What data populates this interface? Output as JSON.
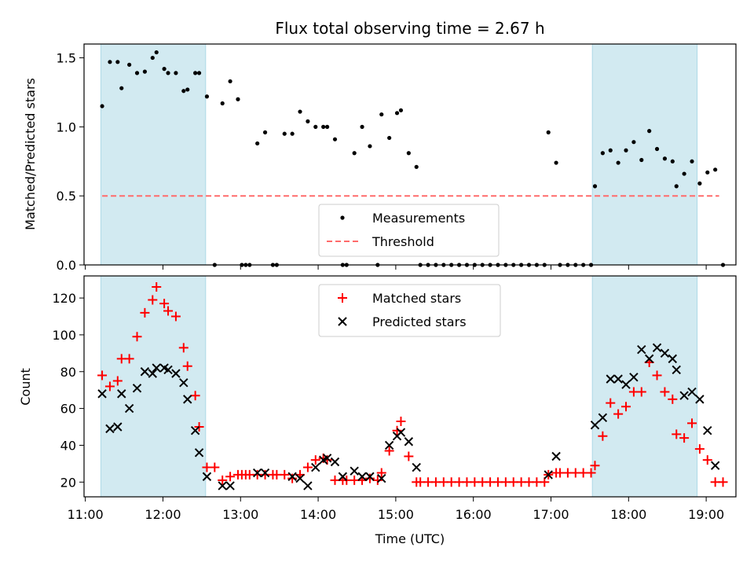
{
  "chart_data": [
    {
      "type": "scatter",
      "title": "Flux total observing time = 2.67 h",
      "xlabel": "",
      "ylabel": "Matched/Predicted stars",
      "x_unit": "hours UTC (x-axis ticks shown as HH:MM)",
      "xlim": [
        "10:59",
        "19:23"
      ],
      "ylim": [
        0,
        1.6
      ],
      "yticks": [
        "0.0",
        "0.5",
        "1.0",
        "1.5"
      ],
      "grid": false,
      "legend_position": "lower center",
      "shaded_spans": [
        {
          "from": "11:12",
          "to": "12:33",
          "color": "#add8e6"
        },
        {
          "from": "17:32",
          "to": "18:53",
          "color": "#add8e6"
        }
      ],
      "series": [
        {
          "name": "Measurements",
          "marker": "dot",
          "color": "#000000",
          "points": [
            [
              "11:13",
              1.15
            ],
            [
              "11:19",
              1.47
            ],
            [
              "11:25",
              1.47
            ],
            [
              "11:28",
              1.28
            ],
            [
              "11:34",
              1.45
            ],
            [
              "11:40",
              1.39
            ],
            [
              "11:46",
              1.4
            ],
            [
              "11:52",
              1.5
            ],
            [
              "11:55",
              1.54
            ],
            [
              "12:01",
              1.42
            ],
            [
              "12:04",
              1.39
            ],
            [
              "12:10",
              1.39
            ],
            [
              "12:16",
              1.26
            ],
            [
              "12:19",
              1.27
            ],
            [
              "12:25",
              1.39
            ],
            [
              "12:28",
              1.39
            ],
            [
              "12:34",
              1.22
            ],
            [
              "12:40",
              0.0
            ],
            [
              "12:46",
              1.17
            ],
            [
              "12:52",
              1.33
            ],
            [
              "12:58",
              1.2
            ],
            [
              "13:01",
              0.0
            ],
            [
              "13:04",
              0.0
            ],
            [
              "13:07",
              0.0
            ],
            [
              "13:13",
              0.88
            ],
            [
              "13:19",
              0.96
            ],
            [
              "13:25",
              0.0
            ],
            [
              "13:28",
              0.0
            ],
            [
              "13:34",
              0.95
            ],
            [
              "13:40",
              0.95
            ],
            [
              "13:46",
              1.11
            ],
            [
              "13:52",
              1.04
            ],
            [
              "13:58",
              1.0
            ],
            [
              "14:04",
              1.0
            ],
            [
              "14:07",
              1.0
            ],
            [
              "14:13",
              0.91
            ],
            [
              "14:19",
              0.0
            ],
            [
              "14:22",
              0.0
            ],
            [
              "14:28",
              0.81
            ],
            [
              "14:34",
              1.0
            ],
            [
              "14:40",
              0.86
            ],
            [
              "14:46",
              0.0
            ],
            [
              "14:49",
              1.09
            ],
            [
              "14:55",
              0.92
            ],
            [
              "15:01",
              1.1
            ],
            [
              "15:04",
              1.12
            ],
            [
              "15:10",
              0.81
            ],
            [
              "15:16",
              0.71
            ],
            [
              "15:19",
              0.0
            ],
            [
              "15:25",
              0.0
            ],
            [
              "15:31",
              0.0
            ],
            [
              "15:37",
              0.0
            ],
            [
              "15:43",
              0.0
            ],
            [
              "15:49",
              0.0
            ],
            [
              "15:55",
              0.0
            ],
            [
              "16:01",
              0.0
            ],
            [
              "16:07",
              0.0
            ],
            [
              "16:13",
              0.0
            ],
            [
              "16:19",
              0.0
            ],
            [
              "16:25",
              0.0
            ],
            [
              "16:31",
              0.0
            ],
            [
              "16:37",
              0.0
            ],
            [
              "16:43",
              0.0
            ],
            [
              "16:49",
              0.0
            ],
            [
              "16:55",
              0.0
            ],
            [
              "16:58",
              0.96
            ],
            [
              "17:04",
              0.74
            ],
            [
              "17:07",
              0.0
            ],
            [
              "17:13",
              0.0
            ],
            [
              "17:19",
              0.0
            ],
            [
              "17:25",
              0.0
            ],
            [
              "17:31",
              0.0
            ],
            [
              "17:34",
              0.57
            ],
            [
              "17:40",
              0.81
            ],
            [
              "17:46",
              0.83
            ],
            [
              "17:52",
              0.74
            ],
            [
              "17:58",
              0.83
            ],
            [
              "18:04",
              0.89
            ],
            [
              "18:10",
              0.76
            ],
            [
              "18:16",
              0.97
            ],
            [
              "18:22",
              0.84
            ],
            [
              "18:28",
              0.77
            ],
            [
              "18:34",
              0.75
            ],
            [
              "18:37",
              0.57
            ],
            [
              "18:43",
              0.66
            ],
            [
              "18:49",
              0.75
            ],
            [
              "18:55",
              0.59
            ],
            [
              "19:01",
              0.67
            ],
            [
              "19:07",
              0.69
            ],
            [
              "19:13",
              0.0
            ]
          ]
        },
        {
          "name": "Threshold",
          "marker": "dashed-line",
          "color": "#ff6b6b",
          "points": [
            [
              "11:13",
              0.5
            ],
            [
              "19:10",
              0.5
            ]
          ]
        }
      ]
    },
    {
      "type": "scatter",
      "title": "",
      "xlabel": "Time (UTC)",
      "ylabel": "Count",
      "x_unit": "hours UTC (x-axis ticks shown as HH:MM)",
      "xlim": [
        "10:59",
        "19:23"
      ],
      "ylim": [
        12,
        132
      ],
      "xticks": [
        "11:00",
        "12:00",
        "13:00",
        "14:00",
        "15:00",
        "16:00",
        "17:00",
        "18:00",
        "19:00"
      ],
      "yticks": [
        "20",
        "40",
        "60",
        "80",
        "100",
        "120"
      ],
      "grid": false,
      "legend_position": "upper center",
      "shaded_spans": [
        {
          "from": "11:12",
          "to": "12:33",
          "color": "#add8e6"
        },
        {
          "from": "17:32",
          "to": "18:53",
          "color": "#add8e6"
        }
      ],
      "series": [
        {
          "name": "Matched stars",
          "marker": "plus",
          "color": "#ff0000",
          "points": [
            [
              "11:13",
              78
            ],
            [
              "11:19",
              72
            ],
            [
              "11:25",
              75
            ],
            [
              "11:28",
              87
            ],
            [
              "11:34",
              87
            ],
            [
              "11:40",
              99
            ],
            [
              "11:46",
              112
            ],
            [
              "11:52",
              119
            ],
            [
              "11:55",
              126
            ],
            [
              "12:01",
              117
            ],
            [
              "12:04",
              113
            ],
            [
              "12:10",
              110
            ],
            [
              "12:16",
              93
            ],
            [
              "12:19",
              83
            ],
            [
              "12:25",
              67
            ],
            [
              "12:28",
              50
            ],
            [
              "12:34",
              28
            ],
            [
              "12:40",
              28
            ],
            [
              "12:46",
              21
            ],
            [
              "12:52",
              23
            ],
            [
              "12:58",
              24
            ],
            [
              "13:01",
              24
            ],
            [
              "13:04",
              24
            ],
            [
              "13:07",
              24
            ],
            [
              "13:13",
              24
            ],
            [
              "13:19",
              24
            ],
            [
              "13:25",
              24
            ],
            [
              "13:28",
              24
            ],
            [
              "13:34",
              24
            ],
            [
              "13:40",
              22
            ],
            [
              "13:46",
              24
            ],
            [
              "13:52",
              28
            ],
            [
              "13:58",
              32
            ],
            [
              "14:04",
              33
            ],
            [
              "14:07",
              32
            ],
            [
              "14:13",
              21
            ],
            [
              "14:19",
              21
            ],
            [
              "14:22",
              21
            ],
            [
              "14:28",
              21
            ],
            [
              "14:34",
              21
            ],
            [
              "14:40",
              22
            ],
            [
              "14:46",
              21
            ],
            [
              "14:49",
              25
            ],
            [
              "14:55",
              37
            ],
            [
              "15:01",
              48
            ],
            [
              "15:04",
              53
            ],
            [
              "15:10",
              34
            ],
            [
              "15:16",
              20
            ],
            [
              "15:19",
              20
            ],
            [
              "15:25",
              20
            ],
            [
              "15:31",
              20
            ],
            [
              "15:37",
              20
            ],
            [
              "15:43",
              20
            ],
            [
              "15:49",
              20
            ],
            [
              "15:55",
              20
            ],
            [
              "16:01",
              20
            ],
            [
              "16:07",
              20
            ],
            [
              "16:13",
              20
            ],
            [
              "16:19",
              20
            ],
            [
              "16:25",
              20
            ],
            [
              "16:31",
              20
            ],
            [
              "16:37",
              20
            ],
            [
              "16:43",
              20
            ],
            [
              "16:49",
              20
            ],
            [
              "16:55",
              20
            ],
            [
              "16:58",
              24
            ],
            [
              "17:04",
              25
            ],
            [
              "17:07",
              25
            ],
            [
              "17:13",
              25
            ],
            [
              "17:19",
              25
            ],
            [
              "17:25",
              25
            ],
            [
              "17:31",
              25
            ],
            [
              "17:34",
              29
            ],
            [
              "17:40",
              45
            ],
            [
              "17:46",
              63
            ],
            [
              "17:52",
              57
            ],
            [
              "17:58",
              61
            ],
            [
              "18:04",
              69
            ],
            [
              "18:10",
              69
            ],
            [
              "18:16",
              85
            ],
            [
              "18:22",
              78
            ],
            [
              "18:28",
              69
            ],
            [
              "18:34",
              65
            ],
            [
              "18:37",
              46
            ],
            [
              "18:43",
              44
            ],
            [
              "18:49",
              52
            ],
            [
              "18:55",
              38
            ],
            [
              "19:01",
              32
            ],
            [
              "19:07",
              20
            ],
            [
              "19:13",
              20
            ]
          ]
        },
        {
          "name": "Predicted stars",
          "marker": "x",
          "color": "#000000",
          "points": [
            [
              "11:13",
              68
            ],
            [
              "11:19",
              49
            ],
            [
              "11:25",
              50
            ],
            [
              "11:28",
              68
            ],
            [
              "11:34",
              60
            ],
            [
              "11:40",
              71
            ],
            [
              "11:46",
              80
            ],
            [
              "11:52",
              79
            ],
            [
              "11:55",
              82
            ],
            [
              "12:01",
              82
            ],
            [
              "12:04",
              81
            ],
            [
              "12:10",
              79
            ],
            [
              "12:16",
              74
            ],
            [
              "12:19",
              65
            ],
            [
              "12:25",
              48
            ],
            [
              "12:28",
              36
            ],
            [
              "12:34",
              23
            ],
            [
              "12:46",
              18
            ],
            [
              "12:52",
              18
            ],
            [
              "13:13",
              25
            ],
            [
              "13:19",
              25
            ],
            [
              "13:40",
              23
            ],
            [
              "13:46",
              22
            ],
            [
              "13:52",
              18
            ],
            [
              "13:58",
              28
            ],
            [
              "14:04",
              32
            ],
            [
              "14:07",
              33
            ],
            [
              "14:13",
              31
            ],
            [
              "14:19",
              23
            ],
            [
              "14:28",
              26
            ],
            [
              "14:34",
              23
            ],
            [
              "14:40",
              23
            ],
            [
              "14:49",
              22
            ],
            [
              "14:55",
              40
            ],
            [
              "15:01",
              45
            ],
            [
              "15:04",
              47
            ],
            [
              "15:10",
              42
            ],
            [
              "15:16",
              28
            ],
            [
              "16:58",
              24
            ],
            [
              "17:04",
              34
            ],
            [
              "17:34",
              51
            ],
            [
              "17:40",
              55
            ],
            [
              "17:46",
              76
            ],
            [
              "17:52",
              76
            ],
            [
              "17:58",
              73
            ],
            [
              "18:04",
              77
            ],
            [
              "18:10",
              92
            ],
            [
              "18:16",
              87
            ],
            [
              "18:22",
              93
            ],
            [
              "18:28",
              90
            ],
            [
              "18:34",
              87
            ],
            [
              "18:37",
              81
            ],
            [
              "18:43",
              67
            ],
            [
              "18:49",
              69
            ],
            [
              "18:55",
              65
            ],
            [
              "19:01",
              48
            ],
            [
              "19:07",
              29
            ]
          ]
        }
      ]
    }
  ]
}
